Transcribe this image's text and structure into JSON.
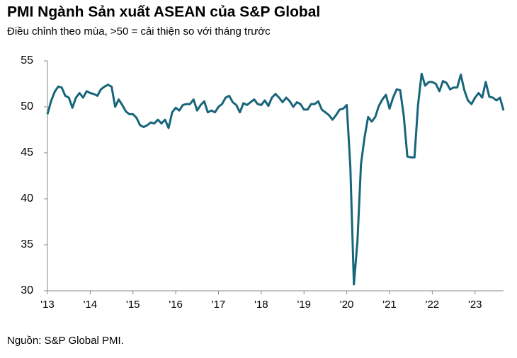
{
  "chart_data": {
    "type": "line",
    "title": "PMI Ngành Sản xuất ASEAN của S&P Global",
    "subtitle": "Điều chỉnh theo mùa, >50 = cải thiện so với tháng trước",
    "source": "Nguồn: S&P Global PMI.",
    "categories": [
      "'13",
      null,
      null,
      null,
      null,
      null,
      null,
      null,
      null,
      null,
      null,
      null,
      "'14",
      null,
      null,
      null,
      null,
      null,
      null,
      null,
      null,
      null,
      null,
      null,
      "'15",
      null,
      null,
      null,
      null,
      null,
      null,
      null,
      null,
      null,
      null,
      null,
      "'16",
      null,
      null,
      null,
      null,
      null,
      null,
      null,
      null,
      null,
      null,
      null,
      "'17",
      null,
      null,
      null,
      null,
      null,
      null,
      null,
      null,
      null,
      null,
      null,
      "'18",
      null,
      null,
      null,
      null,
      null,
      null,
      null,
      null,
      null,
      null,
      null,
      "'19",
      null,
      null,
      null,
      null,
      null,
      null,
      null,
      null,
      null,
      null,
      null,
      "'20",
      null,
      null,
      null,
      null,
      null,
      null,
      null,
      null,
      null,
      null,
      null,
      "'21",
      null,
      null,
      null,
      null,
      null,
      null,
      null,
      null,
      null,
      null,
      null,
      "'22",
      null,
      null,
      null,
      null,
      null,
      null,
      null,
      null,
      null,
      null,
      null,
      "'23",
      null,
      null,
      null,
      null,
      null,
      null,
      null,
      null
    ],
    "series": [
      {
        "name": "PMI",
        "color": "#17657a",
        "values": [
          49.2,
          50.6,
          51.6,
          52.2,
          52.1,
          51.2,
          51.0,
          49.9,
          51.0,
          51.5,
          51.0,
          51.7,
          51.5,
          51.4,
          51.2,
          51.9,
          52.2,
          52.4,
          52.2,
          50.0,
          50.8,
          50.2,
          49.5,
          49.2,
          49.2,
          48.8,
          48.0,
          47.8,
          48.0,
          48.3,
          48.2,
          48.6,
          48.2,
          48.6,
          47.7,
          49.4,
          49.9,
          49.6,
          50.2,
          50.3,
          50.3,
          50.8,
          49.6,
          50.2,
          50.6,
          49.4,
          49.6,
          49.4,
          50.0,
          50.3,
          51.0,
          51.2,
          50.5,
          50.2,
          49.4,
          50.4,
          50.2,
          50.5,
          50.8,
          50.3,
          50.2,
          50.7,
          50.1,
          51.0,
          51.4,
          51.0,
          50.5,
          51.0,
          50.6,
          50.0,
          50.5,
          50.3,
          49.7,
          49.7,
          50.3,
          50.3,
          50.6,
          49.7,
          49.4,
          49.1,
          48.6,
          49.1,
          49.7,
          49.8,
          50.2,
          43.5,
          30.7,
          35.4,
          43.8,
          46.7,
          48.9,
          48.4,
          48.9,
          50.1,
          50.8,
          51.3,
          49.8,
          51.0,
          51.9,
          51.8,
          49.0,
          44.6,
          44.5,
          44.5,
          50.2,
          53.6,
          52.3,
          52.7,
          52.7,
          52.5,
          51.7,
          52.8,
          52.6,
          51.9,
          52.1,
          52.1,
          53.5,
          51.8,
          50.7,
          50.3,
          51.0,
          51.5,
          51.0,
          52.7,
          51.1,
          51.0,
          50.7,
          51.0,
          49.6
        ]
      }
    ],
    "ylim": [
      30,
      55
    ],
    "yticks": [
      30,
      35,
      40,
      45,
      50,
      55
    ],
    "grid": false
  }
}
